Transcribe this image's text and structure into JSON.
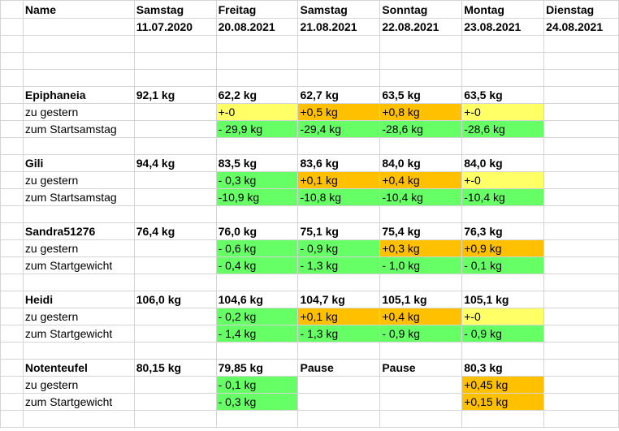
{
  "sheet": {
    "header": {
      "name_label": "Name",
      "days": [
        "Samstag",
        "Freitag",
        "Samstag",
        "Sonntag",
        "Montag",
        "Dienstag"
      ],
      "dates": [
        "11.07.2020",
        "20.08.2021",
        "21.08.2021",
        "22.08.2021",
        "23.08.2021",
        "24.08.2021"
      ]
    },
    "colors": {
      "yellow": "#ffff66",
      "orange": "#ffc000",
      "green": "#66ff66"
    },
    "participants": [
      {
        "name": "Epiphaneia",
        "weights": [
          "92,1 kg",
          "62,2 kg",
          "62,7 kg",
          "63,5 kg",
          "63,5 kg",
          ""
        ],
        "change_label": "zu gestern",
        "change": [
          "",
          "+-0",
          "+0,5 kg",
          "+0,8 kg",
          "+-0",
          ""
        ],
        "change_colors": [
          "",
          "yellow",
          "orange",
          "orange",
          "yellow",
          ""
        ],
        "total_label": "zum Startsamstag",
        "total": [
          "",
          "- 29,9 kg",
          "-29,4 kg",
          "-28,6 kg",
          "-28,6 kg",
          ""
        ],
        "total_colors": [
          "",
          "green",
          "green",
          "green",
          "green",
          ""
        ]
      },
      {
        "name": "Gili",
        "weights": [
          "94,4 kg",
          "83,5 kg",
          "83,6 kg",
          "84,0 kg",
          "84,0 kg",
          ""
        ],
        "change_label": "zu gestern",
        "change": [
          "",
          "- 0,3 kg",
          "+0,1 kg",
          "+0,4 kg",
          "+-0",
          ""
        ],
        "change_colors": [
          "",
          "green",
          "orange",
          "orange",
          "yellow",
          ""
        ],
        "total_label": "zum Startsamstag",
        "total": [
          "",
          "-10,9 kg",
          "-10,8 kg",
          "-10,4 kg",
          "-10,4 kg",
          ""
        ],
        "total_colors": [
          "",
          "green",
          "green",
          "green",
          "green",
          ""
        ]
      },
      {
        "name": "Sandra51276",
        "weights": [
          "76,4 kg",
          "76,0 kg",
          "75,1 kg",
          "75,4 kg",
          "76,3 kg",
          ""
        ],
        "change_label": "zu gestern",
        "change": [
          "",
          "- 0,6 kg",
          "- 0,9 kg",
          "+0,3 kg",
          "+0,9 kg",
          ""
        ],
        "change_colors": [
          "",
          "green",
          "green",
          "orange",
          "orange",
          ""
        ],
        "total_label": "zum Startgewicht",
        "total": [
          "",
          "- 0,4 kg",
          "- 1,3 kg",
          "- 1,0 kg",
          "- 0,1 kg",
          ""
        ],
        "total_colors": [
          "",
          "green",
          "green",
          "green",
          "green",
          ""
        ]
      },
      {
        "name": "Heidi",
        "weights": [
          "106,0 kg",
          "104,6 kg",
          "104,7 kg",
          "105,1 kg",
          "105,1 kg",
          ""
        ],
        "change_label": "zu gestern",
        "change": [
          "",
          "- 0,2 kg",
          "+0,1 kg",
          "+0,4 kg",
          "+-0",
          ""
        ],
        "change_colors": [
          "",
          "green",
          "orange",
          "orange",
          "yellow",
          ""
        ],
        "total_label": "zum Startgewicht",
        "total": [
          "",
          "- 1,4 kg",
          "- 1,3 kg",
          "- 0,9 kg",
          "- 0,9 kg",
          ""
        ],
        "total_colors": [
          "",
          "green",
          "green",
          "green",
          "green",
          ""
        ]
      },
      {
        "name": "Notenteufel",
        "weights": [
          "80,15 kg",
          "79,85 kg",
          "Pause",
          "Pause",
          "80,3 kg",
          ""
        ],
        "change_label": "zu gestern",
        "change": [
          "",
          "- 0,1 kg",
          "",
          "",
          "+0,45 kg",
          ""
        ],
        "change_colors": [
          "",
          "green",
          "",
          "",
          "orange",
          ""
        ],
        "total_label": "zum Startgewicht",
        "total": [
          "",
          "- 0,3 kg",
          "",
          "",
          "+0,15 kg",
          ""
        ],
        "total_colors": [
          "",
          "green",
          "",
          "",
          "orange",
          ""
        ]
      }
    ]
  }
}
